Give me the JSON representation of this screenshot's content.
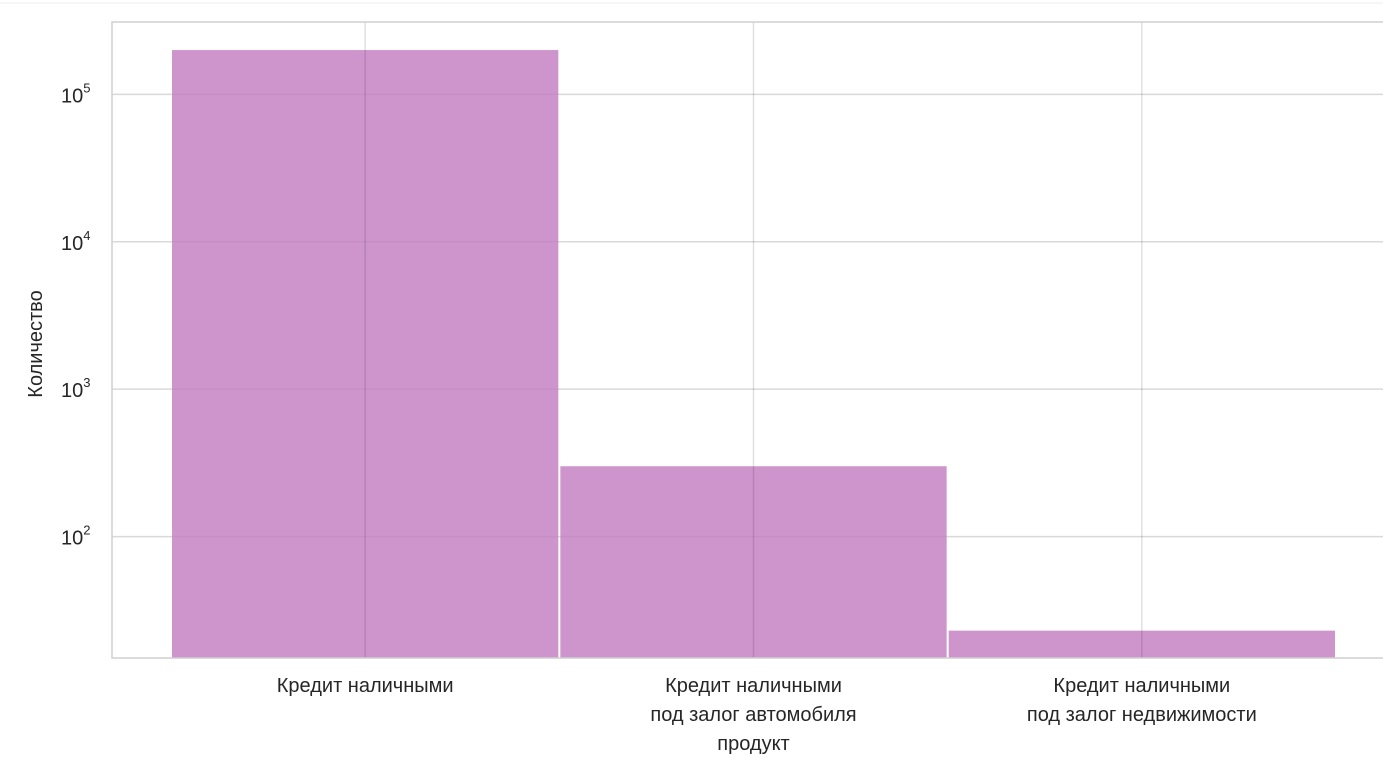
{
  "chart_data": {
    "type": "bar",
    "title": "",
    "xlabel": "",
    "ylabel": "Количество",
    "yscale": "log",
    "grid": true,
    "categories": [
      [
        "Кредит наличными"
      ],
      [
        "Кредит наличными",
        "под залог автомобиля",
        "продукт"
      ],
      [
        "Кредит наличными",
        "под залог недвижимости"
      ]
    ],
    "values": [
      200000,
      300,
      23
    ],
    "ylim": [
      15,
      310000
    ],
    "yticks": [
      {
        "value": 100,
        "base": "10",
        "exp": "2"
      },
      {
        "value": 1000,
        "base": "10",
        "exp": "3"
      },
      {
        "value": 10000,
        "base": "10",
        "exp": "4"
      },
      {
        "value": 100000,
        "base": "10",
        "exp": "5"
      }
    ],
    "bar_color": "#c27bc0",
    "grid_color": "#d9d9d9",
    "frame_color": "#cfcfcf"
  }
}
